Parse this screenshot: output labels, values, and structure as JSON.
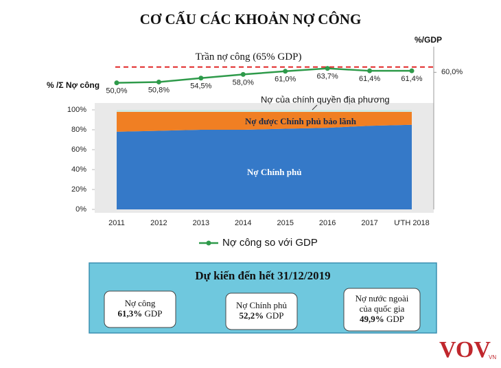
{
  "chart_data": {
    "type": "area",
    "title": "CƠ CẤU CÁC KHOẢN NỢ CÔNG",
    "y_label": "% /Σ Nợ công",
    "y2_label": "%/GDP",
    "categories": [
      "2011",
      "2012",
      "2013",
      "2014",
      "2015",
      "2016",
      "2017",
      "ƯTH 2018"
    ],
    "stacked": true,
    "series": [
      {
        "name": "Nợ Chính phủ",
        "color": "#3579c8",
        "values": [
          78,
          79,
          80,
          80,
          81,
          82,
          84,
          85
        ]
      },
      {
        "name": "Nợ được Chính phủ bảo lãnh",
        "color": "#f07f23",
        "values": [
          20,
          19,
          18,
          18,
          17,
          16,
          14,
          13
        ]
      },
      {
        "name": "Nợ của chính quyền địa phương",
        "color": "#cfe9e3",
        "values": [
          2,
          2,
          2,
          2,
          2,
          2,
          2,
          2
        ]
      },
      {
        "name": "Nợ công so với GDP",
        "color": "#2e9a4a",
        "axis": "y2",
        "type": "line",
        "values": [
          50.0,
          50.8,
          54.5,
          58.0,
          61.0,
          63.7,
          61.4,
          61.4
        ],
        "value_labels": [
          "50,0%",
          "50,8%",
          "54,5%",
          "58,0%",
          "61,0%",
          "63,7%",
          "61,4%",
          "61,4%"
        ]
      }
    ],
    "ylim": [
      0,
      100
    ],
    "yticks": [
      {
        "value": 0,
        "label": "0%"
      },
      {
        "value": 20,
        "label": "20%"
      },
      {
        "value": 40,
        "label": "40%"
      },
      {
        "value": 60,
        "label": "60%"
      },
      {
        "value": 80,
        "label": "80%"
      },
      {
        "value": 100,
        "label": "100%"
      }
    ],
    "y2lim": [
      40,
      70
    ],
    "y2ticks": [
      {
        "value": 60,
        "label": "60,0%"
      }
    ],
    "ceiling": {
      "value": 65,
      "label": "Trần nợ công (65% GDP)",
      "color": "#e02424"
    },
    "legend": "bottom"
  },
  "forecast": {
    "title": "Dự kiến đến hết 31/12/2019",
    "cards": [
      {
        "lines": [
          "Nợ công"
        ],
        "value": "61,3%",
        "unit": "GDP"
      },
      {
        "lines": [
          "Nợ Chính phủ"
        ],
        "value": "52,2%",
        "unit": "GDP"
      },
      {
        "lines": [
          "Nợ nước ngoài",
          "của quốc gia"
        ],
        "value": "49,9%",
        "unit": "GDP"
      }
    ]
  },
  "logo": {
    "text": "VOV",
    "suffix": "VN"
  }
}
